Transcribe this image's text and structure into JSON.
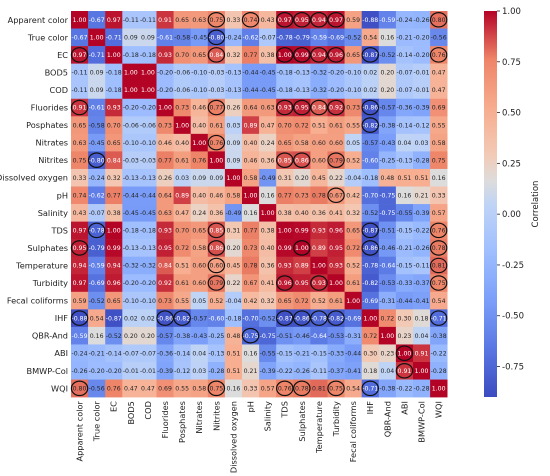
{
  "chart_data": {
    "type": "heatmap",
    "title": "",
    "variables": [
      "Apparent color",
      "True color",
      "EC",
      "BOD5",
      "COD",
      "Fluorides",
      "Posphates",
      "Nitrates",
      "Nitrites",
      "Dissolved oxygen",
      "pH",
      "Salinity",
      "TDS",
      "Sulphates",
      "Temperature",
      "Turbidity",
      "Fecal coliforms",
      "IHF",
      "QBR-And",
      "ABI",
      "BMWP-Col",
      "WQI"
    ],
    "matrix": [
      [
        1.0,
        -0.67,
        0.97,
        -0.11,
        -0.11,
        0.91,
        0.65,
        0.63,
        0.75,
        0.33,
        0.74,
        0.43,
        0.97,
        0.95,
        0.94,
        0.97,
        0.59,
        -0.88,
        -0.59,
        -0.24,
        -0.26,
        0.8
      ],
      [
        -0.67,
        1.0,
        -0.71,
        0.09,
        0.09,
        -0.61,
        -0.58,
        -0.45,
        -0.8,
        -0.24,
        -0.62,
        -0.07,
        -0.78,
        -0.79,
        -0.59,
        -0.69,
        -0.52,
        0.54,
        0.16,
        -0.21,
        -0.2,
        -0.56
      ],
      [
        0.97,
        -0.71,
        1.0,
        -0.18,
        -0.18,
        0.93,
        0.7,
        0.65,
        0.84,
        0.32,
        0.77,
        0.38,
        1.0,
        0.99,
        0.94,
        0.96,
        0.65,
        -0.87,
        -0.52,
        -0.14,
        -0.2,
        0.76
      ],
      [
        -0.11,
        0.09,
        -0.18,
        1.0,
        1.0,
        -0.2,
        -0.06,
        -0.1,
        -0.03,
        -0.13,
        -0.44,
        -0.45,
        -0.18,
        -0.13,
        -0.32,
        -0.2,
        -0.1,
        0.02,
        0.2,
        -0.07,
        -0.01,
        0.47
      ],
      [
        -0.11,
        0.09,
        -0.18,
        1.0,
        1.0,
        -0.2,
        -0.06,
        -0.1,
        -0.03,
        -0.13,
        -0.44,
        -0.45,
        -0.18,
        -0.13,
        -0.32,
        -0.2,
        -0.1,
        0.02,
        0.2,
        -0.07,
        -0.01,
        0.47
      ],
      [
        0.91,
        -0.61,
        0.93,
        -0.2,
        -0.2,
        1.0,
        0.73,
        0.46,
        0.77,
        0.26,
        0.64,
        0.63,
        0.93,
        0.95,
        0.84,
        0.92,
        0.73,
        -0.86,
        -0.57,
        -0.36,
        -0.39,
        0.69
      ],
      [
        0.65,
        -0.58,
        0.7,
        -0.06,
        -0.06,
        0.73,
        1.0,
        0.4,
        0.61,
        0.03,
        0.89,
        0.47,
        0.7,
        0.72,
        0.51,
        0.61,
        0.55,
        -0.82,
        -0.38,
        -0.14,
        -0.12,
        0.55
      ],
      [
        0.63,
        -0.45,
        0.65,
        -0.1,
        -0.1,
        0.46,
        0.4,
        1.0,
        0.76,
        0.09,
        0.4,
        0.24,
        0.65,
        0.58,
        0.6,
        0.6,
        0.05,
        -0.57,
        -0.43,
        0.04,
        0.03,
        0.58
      ],
      [
        0.75,
        -0.8,
        0.84,
        -0.03,
        -0.03,
        0.77,
        0.61,
        0.76,
        1.0,
        0.09,
        0.46,
        0.36,
        0.85,
        0.86,
        0.6,
        0.79,
        0.52,
        -0.6,
        -0.25,
        -0.13,
        -0.28,
        0.75
      ],
      [
        0.33,
        -0.24,
        0.32,
        -0.13,
        -0.13,
        0.26,
        0.03,
        0.09,
        0.09,
        1.0,
        0.58,
        -0.49,
        0.31,
        0.2,
        0.45,
        0.22,
        -0.04,
        -0.18,
        0.48,
        0.51,
        0.51,
        0.16
      ],
      [
        0.74,
        -0.62,
        0.77,
        -0.44,
        -0.44,
        0.64,
        0.89,
        0.4,
        0.46,
        0.58,
        1.0,
        0.16,
        0.77,
        0.73,
        0.78,
        0.67,
        0.42,
        -0.7,
        -0.75,
        0.16,
        0.21,
        0.33
      ],
      [
        0.43,
        -0.07,
        0.38,
        -0.45,
        -0.45,
        0.63,
        0.47,
        0.24,
        0.36,
        -0.49,
        0.16,
        1.0,
        0.38,
        0.4,
        0.36,
        0.41,
        0.32,
        -0.52,
        -0.75,
        -0.55,
        -0.39,
        0.57
      ],
      [
        0.97,
        -0.78,
        1.0,
        -0.18,
        -0.18,
        0.93,
        0.7,
        0.65,
        0.85,
        0.31,
        0.77,
        0.38,
        1.0,
        0.99,
        0.93,
        0.96,
        0.65,
        -0.87,
        -0.51,
        -0.15,
        -0.22,
        0.76
      ],
      [
        0.95,
        -0.79,
        0.99,
        -0.13,
        -0.13,
        0.95,
        0.72,
        0.58,
        0.86,
        0.2,
        0.73,
        0.4,
        0.99,
        1.0,
        0.89,
        0.95,
        0.72,
        -0.86,
        -0.46,
        -0.21,
        -0.26,
        0.78
      ],
      [
        0.94,
        -0.59,
        0.94,
        -0.32,
        -0.32,
        0.84,
        0.51,
        0.6,
        0.6,
        0.45,
        0.78,
        0.36,
        0.93,
        0.89,
        1.0,
        0.93,
        0.52,
        -0.78,
        -0.64,
        -0.15,
        -0.11,
        0.81
      ],
      [
        0.97,
        -0.69,
        0.96,
        -0.2,
        -0.2,
        0.92,
        0.61,
        0.6,
        0.79,
        0.22,
        0.67,
        0.41,
        0.96,
        0.95,
        0.93,
        1.0,
        0.61,
        -0.82,
        -0.53,
        -0.33,
        -0.37,
        0.75
      ],
      [
        0.59,
        -0.52,
        0.65,
        -0.1,
        -0.1,
        0.73,
        0.55,
        0.05,
        0.52,
        -0.04,
        0.42,
        0.32,
        0.65,
        0.72,
        0.52,
        0.61,
        1.0,
        -0.69,
        -0.31,
        -0.44,
        -0.41,
        0.54
      ],
      [
        -0.88,
        0.54,
        -0.87,
        0.02,
        0.02,
        -0.86,
        -0.82,
        -0.57,
        -0.6,
        -0.18,
        -0.7,
        -0.52,
        -0.87,
        -0.86,
        -0.78,
        -0.82,
        -0.69,
        1.0,
        0.72,
        0.3,
        0.18,
        -0.71
      ],
      [
        -0.59,
        0.16,
        -0.52,
        0.2,
        0.2,
        -0.57,
        -0.38,
        -0.43,
        -0.25,
        0.48,
        -0.75,
        -0.75,
        -0.51,
        -0.46,
        -0.64,
        -0.53,
        -0.31,
        0.72,
        1.0,
        0.23,
        0.04,
        -0.38
      ],
      [
        -0.24,
        -0.21,
        -0.14,
        -0.07,
        -0.07,
        -0.36,
        -0.14,
        0.04,
        -0.13,
        0.51,
        0.16,
        -0.55,
        -0.15,
        -0.21,
        -0.15,
        -0.33,
        -0.44,
        0.3,
        0.23,
        1.0,
        0.91,
        -0.22
      ],
      [
        -0.26,
        -0.2,
        -0.2,
        -0.01,
        -0.01,
        -0.39,
        -0.12,
        0.03,
        -0.28,
        0.51,
        0.21,
        -0.39,
        -0.22,
        -0.26,
        -0.11,
        -0.37,
        -0.41,
        0.18,
        0.04,
        0.91,
        1.0,
        -0.28
      ],
      [
        0.8,
        -0.56,
        0.76,
        0.47,
        0.47,
        0.69,
        0.55,
        0.58,
        0.75,
        0.16,
        0.33,
        0.57,
        0.76,
        0.78,
        0.81,
        0.75,
        0.54,
        -0.71,
        -0.38,
        -0.22,
        -0.28,
        1.0
      ]
    ],
    "highlighted_cells": [
      [
        0,
        8
      ],
      [
        0,
        10
      ],
      [
        0,
        12
      ],
      [
        0,
        13
      ],
      [
        0,
        14
      ],
      [
        0,
        15
      ],
      [
        0,
        21
      ],
      [
        1,
        8
      ],
      [
        2,
        0
      ],
      [
        2,
        8
      ],
      [
        2,
        12
      ],
      [
        2,
        13
      ],
      [
        2,
        14
      ],
      [
        2,
        15
      ],
      [
        2,
        17
      ],
      [
        2,
        21
      ],
      [
        5,
        0
      ],
      [
        5,
        8
      ],
      [
        5,
        12
      ],
      [
        5,
        13
      ],
      [
        5,
        14
      ],
      [
        5,
        15
      ],
      [
        5,
        17
      ],
      [
        6,
        17
      ],
      [
        7,
        8
      ],
      [
        8,
        1
      ],
      [
        8,
        12
      ],
      [
        8,
        13
      ],
      [
        8,
        15
      ],
      [
        10,
        15
      ],
      [
        12,
        1
      ],
      [
        12,
        8
      ],
      [
        12,
        17
      ],
      [
        12,
        21
      ],
      [
        13,
        0
      ],
      [
        13,
        8
      ],
      [
        13,
        13
      ],
      [
        13,
        17
      ],
      [
        13,
        21
      ],
      [
        14,
        8
      ],
      [
        14,
        21
      ],
      [
        15,
        8
      ],
      [
        15,
        12
      ],
      [
        15,
        14
      ],
      [
        15,
        21
      ],
      [
        17,
        0
      ],
      [
        17,
        5
      ],
      [
        17,
        6
      ],
      [
        17,
        12
      ],
      [
        17,
        13
      ],
      [
        17,
        14
      ],
      [
        17,
        15
      ],
      [
        17,
        21
      ],
      [
        18,
        10
      ],
      [
        19,
        19
      ],
      [
        20,
        19
      ],
      [
        21,
        0
      ],
      [
        21,
        8
      ],
      [
        21,
        12
      ],
      [
        21,
        13
      ],
      [
        21,
        15
      ],
      [
        21,
        17
      ]
    ],
    "colormap": "coolwarm",
    "vmin": -0.9,
    "vmax": 1.0,
    "colorbar": {
      "label": "Correlation",
      "ticks": [
        "1.00",
        "0.75",
        "0.50",
        "0.25",
        "0.00",
        "-0.25",
        "-0.50",
        "-0.75"
      ],
      "tick_values": [
        1.0,
        0.75,
        0.5,
        0.25,
        0.0,
        -0.25,
        -0.5,
        -0.75
      ]
    }
  }
}
